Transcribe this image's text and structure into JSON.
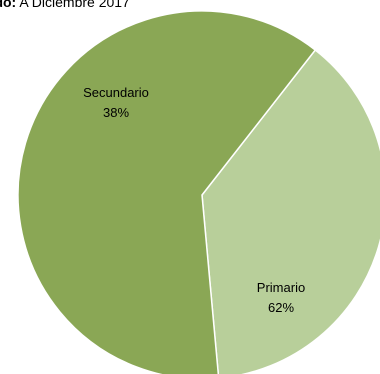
{
  "subtitle": {
    "label": "tado:",
    "value": "A Diciembre 2017"
  },
  "chart_data": {
    "type": "pie",
    "title": "",
    "slices": [
      {
        "label": "Secundario",
        "value": 38,
        "display": "38%",
        "color": "#b8cf9a"
      },
      {
        "label": "Primario",
        "value": 62,
        "display": "62%",
        "color": "#8aa755"
      }
    ],
    "legend": "none",
    "labels": "inside"
  }
}
